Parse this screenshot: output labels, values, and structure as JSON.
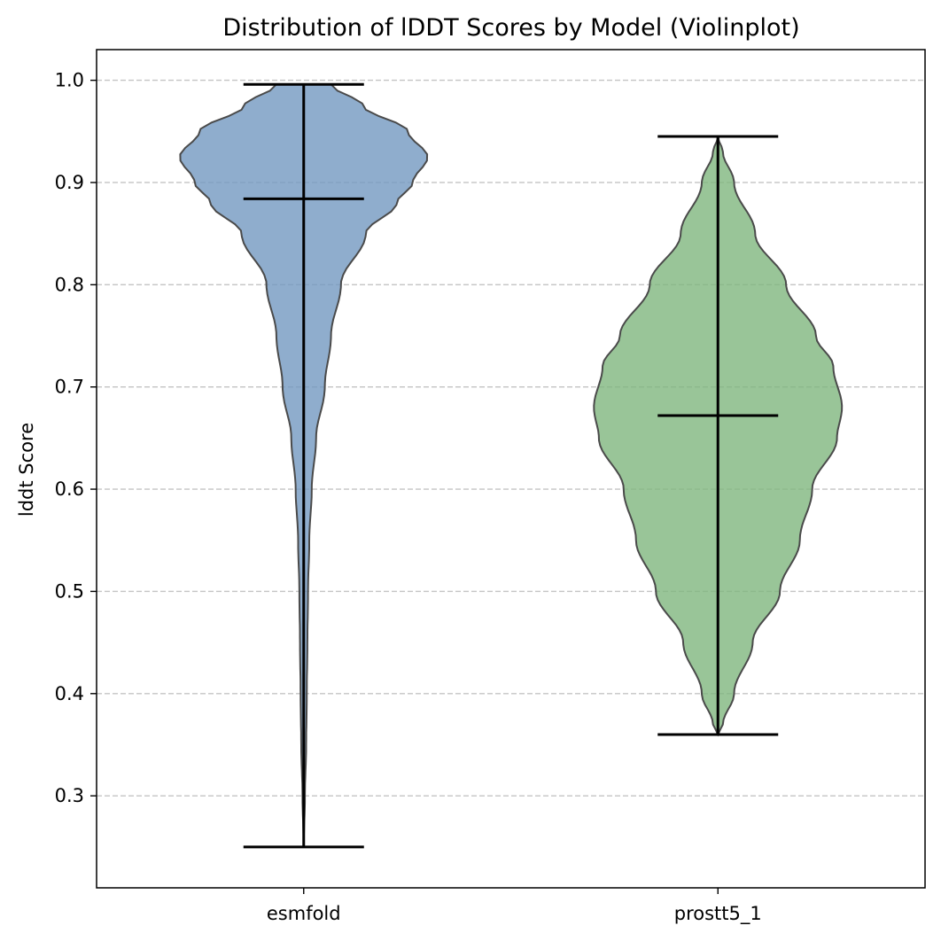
{
  "chart_data": {
    "type": "violin",
    "title": "Distribution of lDDT Scores by Model (Violinplot)",
    "xlabel": "",
    "ylabel": "lddt Score",
    "ylim": [
      0.21,
      1.03
    ],
    "yticks": [
      0.3,
      0.4,
      0.5,
      0.6,
      0.7,
      0.8,
      0.9,
      1.0
    ],
    "ytick_labels": [
      "0.3",
      "0.4",
      "0.5",
      "0.6",
      "0.7",
      "0.8",
      "0.9",
      "1.0"
    ],
    "grid": {
      "axis": "y",
      "style": "dashed",
      "on": true
    },
    "categories": [
      "esmfold",
      "prostt5_1"
    ],
    "series": [
      {
        "category": "esmfold",
        "color": "#7399c0",
        "min": 0.25,
        "max": 0.996,
        "median": 0.884,
        "density_profile": [
          [
            0.25,
            0.0
          ],
          [
            0.3,
            0.01
          ],
          [
            0.35,
            0.02
          ],
          [
            0.4,
            0.025
          ],
          [
            0.45,
            0.03
          ],
          [
            0.5,
            0.035
          ],
          [
            0.55,
            0.045
          ],
          [
            0.6,
            0.065
          ],
          [
            0.65,
            0.1
          ],
          [
            0.7,
            0.17
          ],
          [
            0.75,
            0.22
          ],
          [
            0.8,
            0.3
          ],
          [
            0.85,
            0.5
          ],
          [
            0.88,
            0.75
          ],
          [
            0.9,
            0.88
          ],
          [
            0.925,
            1.0
          ],
          [
            0.95,
            0.84
          ],
          [
            0.975,
            0.48
          ],
          [
            0.996,
            0.22
          ]
        ]
      },
      {
        "category": "prostt5_1",
        "color": "#7fb77e",
        "min": 0.36,
        "max": 0.945,
        "median": 0.672,
        "density_profile": [
          [
            0.36,
            0.0
          ],
          [
            0.37,
            0.04
          ],
          [
            0.4,
            0.13
          ],
          [
            0.45,
            0.28
          ],
          [
            0.5,
            0.5
          ],
          [
            0.55,
            0.66
          ],
          [
            0.6,
            0.76
          ],
          [
            0.65,
            0.96
          ],
          [
            0.68,
            1.0
          ],
          [
            0.72,
            0.93
          ],
          [
            0.75,
            0.79
          ],
          [
            0.8,
            0.55
          ],
          [
            0.85,
            0.3
          ],
          [
            0.9,
            0.13
          ],
          [
            0.93,
            0.04
          ],
          [
            0.945,
            0.0
          ]
        ]
      }
    ]
  }
}
